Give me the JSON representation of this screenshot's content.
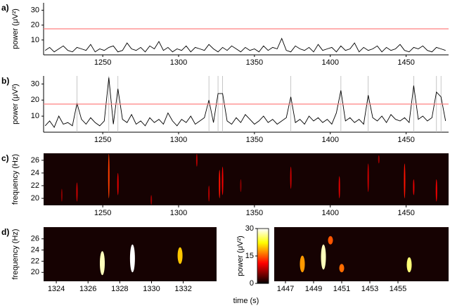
{
  "xlabel": "time (s)",
  "chart_data": [
    {
      "type": "line",
      "panel_label": "a)",
      "ylabel": "power (μV²)",
      "color": "#000000",
      "threshold": 17.5,
      "threshold_color": "#ff8080",
      "xlim": [
        1211,
        1478
      ],
      "ylim": [
        0,
        35
      ],
      "xticks": [
        1250,
        1300,
        1350,
        1400,
        1450
      ],
      "yticks": [
        10,
        20,
        30
      ],
      "x": [
        1212,
        1215,
        1218,
        1221,
        1224,
        1227,
        1230,
        1233,
        1236,
        1239,
        1242,
        1245,
        1248,
        1251,
        1254,
        1257,
        1260,
        1263,
        1266,
        1269,
        1272,
        1275,
        1278,
        1281,
        1284,
        1287,
        1290,
        1293,
        1296,
        1299,
        1302,
        1305,
        1308,
        1311,
        1314,
        1317,
        1320,
        1323,
        1326,
        1329,
        1332,
        1335,
        1338,
        1341,
        1344,
        1347,
        1350,
        1353,
        1356,
        1359,
        1362,
        1365,
        1368,
        1371,
        1374,
        1377,
        1380,
        1383,
        1386,
        1389,
        1392,
        1395,
        1398,
        1401,
        1404,
        1407,
        1410,
        1413,
        1416,
        1419,
        1422,
        1425,
        1428,
        1431,
        1434,
        1437,
        1440,
        1443,
        1446,
        1449,
        1452,
        1455,
        1458,
        1461,
        1464,
        1467,
        1470,
        1473,
        1476
      ],
      "values": [
        3,
        5,
        2,
        4,
        6,
        3,
        2,
        5,
        4,
        3,
        7,
        2,
        4,
        3,
        5,
        6,
        2,
        3,
        8,
        4,
        3,
        5,
        2,
        6,
        4,
        9,
        3,
        5,
        2,
        4,
        3,
        6,
        2,
        5,
        4,
        3,
        7,
        4,
        2,
        5,
        3,
        6,
        4,
        2,
        5,
        3,
        4,
        2,
        6,
        3,
        5,
        4,
        11,
        3,
        2,
        6,
        4,
        3,
        5,
        2,
        7,
        3,
        4,
        5,
        2,
        6,
        3,
        4,
        8,
        2,
        5,
        3,
        4,
        6,
        2,
        5,
        3,
        4,
        7,
        3,
        2,
        5,
        4,
        6,
        3,
        2,
        5,
        4,
        3
      ]
    },
    {
      "type": "line",
      "panel_label": "b)",
      "ylabel": "power (μV²)",
      "color": "#000000",
      "threshold": 17.5,
      "threshold_color": "#ff8080",
      "event_times": [
        1233,
        1254,
        1260,
        1320,
        1326,
        1329,
        1374,
        1407,
        1425,
        1455,
        1470,
        1473
      ],
      "event_color": "#b8b8b8",
      "xlim": [
        1211,
        1478
      ],
      "ylim": [
        0,
        35
      ],
      "xticks": [
        1250,
        1300,
        1350,
        1400,
        1450
      ],
      "yticks": [
        10,
        20,
        30
      ],
      "x": [
        1212,
        1215,
        1218,
        1221,
        1224,
        1227,
        1230,
        1233,
        1236,
        1239,
        1242,
        1245,
        1248,
        1251,
        1254,
        1257,
        1260,
        1263,
        1266,
        1269,
        1272,
        1275,
        1278,
        1281,
        1284,
        1287,
        1290,
        1293,
        1296,
        1299,
        1302,
        1305,
        1308,
        1311,
        1314,
        1317,
        1320,
        1323,
        1326,
        1329,
        1332,
        1335,
        1338,
        1341,
        1344,
        1347,
        1350,
        1353,
        1356,
        1359,
        1362,
        1365,
        1368,
        1371,
        1374,
        1377,
        1380,
        1383,
        1386,
        1389,
        1392,
        1395,
        1398,
        1401,
        1404,
        1407,
        1410,
        1413,
        1416,
        1419,
        1422,
        1425,
        1428,
        1431,
        1434,
        1437,
        1440,
        1443,
        1446,
        1449,
        1452,
        1455,
        1458,
        1461,
        1464,
        1467,
        1470,
        1473,
        1476
      ],
      "values": [
        4,
        7,
        3,
        10,
        5,
        6,
        4,
        18,
        8,
        5,
        9,
        6,
        4,
        7,
        34,
        5,
        27,
        8,
        6,
        11,
        5,
        7,
        4,
        9,
        6,
        8,
        5,
        12,
        7,
        4,
        8,
        6,
        10,
        5,
        7,
        9,
        20,
        6,
        24,
        24,
        7,
        5,
        9,
        6,
        11,
        8,
        5,
        7,
        10,
        6,
        8,
        5,
        7,
        9,
        22,
        6,
        8,
        5,
        10,
        7,
        9,
        6,
        8,
        5,
        12,
        26,
        7,
        9,
        6,
        8,
        5,
        23,
        9,
        7,
        10,
        6,
        11,
        8,
        7,
        9,
        6,
        29,
        8,
        10,
        7,
        9,
        25,
        22,
        7
      ]
    },
    {
      "type": "heatmap",
      "panel_label": "c)",
      "ylabel": "frequency (Hz)",
      "colormap": "hot",
      "clim": [
        0,
        30
      ],
      "background": "#160202",
      "xlim": [
        1211,
        1478
      ],
      "ylim": [
        18.9,
        27.1
      ],
      "xticks": [
        1250,
        1300,
        1350,
        1400,
        1450
      ],
      "yticks": [
        20,
        22,
        24,
        26
      ],
      "events": [
        {
          "time": 1223,
          "freq_low": 19.5,
          "freq_high": 21.5,
          "power": 6
        },
        {
          "time": 1233,
          "freq_low": 19.5,
          "freq_high": 22.5,
          "power": 9
        },
        {
          "time": 1254,
          "freq_low": 20,
          "freq_high": 27,
          "power": 14
        },
        {
          "time": 1260,
          "freq_low": 20.5,
          "freq_high": 24,
          "power": 10
        },
        {
          "time": 1282,
          "freq_low": 19,
          "freq_high": 20.5,
          "power": 7
        },
        {
          "time": 1312,
          "freq_low": 25,
          "freq_high": 27,
          "power": 8
        },
        {
          "time": 1320,
          "freq_low": 19.5,
          "freq_high": 22,
          "power": 8
        },
        {
          "time": 1327,
          "freq_low": 20,
          "freq_high": 24.5,
          "power": 12
        },
        {
          "time": 1329,
          "freq_low": 20.5,
          "freq_high": 25,
          "power": 11
        },
        {
          "time": 1341,
          "freq_low": 21,
          "freq_high": 23,
          "power": 6
        },
        {
          "time": 1374,
          "freq_low": 21.5,
          "freq_high": 25,
          "power": 9
        },
        {
          "time": 1406,
          "freq_low": 20,
          "freq_high": 23.5,
          "power": 10
        },
        {
          "time": 1425,
          "freq_low": 21,
          "freq_high": 25.5,
          "power": 9
        },
        {
          "time": 1432,
          "freq_low": 25.5,
          "freq_high": 26.8,
          "power": 7
        },
        {
          "time": 1449,
          "freq_low": 20,
          "freq_high": 25.5,
          "power": 12
        },
        {
          "time": 1455,
          "freq_low": 20.5,
          "freq_high": 23,
          "power": 10
        },
        {
          "time": 1470,
          "freq_low": 19.5,
          "freq_high": 23,
          "power": 11
        }
      ]
    },
    {
      "type": "heatmap",
      "panel_label": "d)",
      "ylabel": "frequency (Hz)",
      "colormap": "hot",
      "clim": [
        0,
        30
      ],
      "background": "#160202",
      "xlim": [
        1323.2,
        1334.1
      ],
      "ylim": [
        18.4,
        28.1
      ],
      "xticks": [
        1324,
        1326,
        1328,
        1330,
        1332
      ],
      "yticks": [
        20,
        22,
        24,
        26
      ],
      "events": [
        {
          "time": 1326.9,
          "freq_low": 19.5,
          "freq_high": 23.8,
          "power": 28
        },
        {
          "time": 1328.8,
          "freq_low": 20,
          "freq_high": 25,
          "power": 30
        },
        {
          "time": 1331.8,
          "freq_low": 21.5,
          "freq_high": 24.5,
          "power": 20
        }
      ],
      "colorbar": {
        "label": "power (μV²)",
        "lim": [
          0,
          30
        ],
        "ticks": [
          0,
          15,
          30
        ]
      }
    },
    {
      "type": "heatmap",
      "colormap": "hot",
      "clim": [
        0,
        30
      ],
      "background": "#160202",
      "xlim": [
        1446.2,
        1458.6
      ],
      "ylim": [
        18.4,
        28.1
      ],
      "xticks": [
        1447,
        1449,
        1451,
        1453,
        1455
      ],
      "events": [
        {
          "time": 1448.2,
          "freq_low": 20,
          "freq_high": 23,
          "power": 18
        },
        {
          "time": 1449.7,
          "freq_low": 20.5,
          "freq_high": 25,
          "power": 28
        },
        {
          "time": 1450.2,
          "freq_low": 25,
          "freq_high": 26.5,
          "power": 15
        },
        {
          "time": 1451.0,
          "freq_low": 20,
          "freq_high": 21.5,
          "power": 16
        },
        {
          "time": 1455.8,
          "freq_low": 20,
          "freq_high": 22.7,
          "power": 26
        }
      ]
    }
  ]
}
